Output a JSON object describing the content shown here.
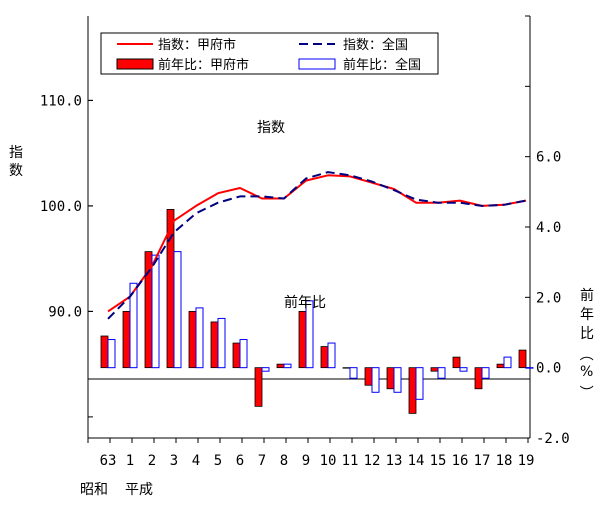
{
  "chart_data": {
    "type": "bar+line",
    "categories": [
      "63",
      "1",
      "2",
      "3",
      "4",
      "5",
      "6",
      "7",
      "8",
      "9",
      "10",
      "11",
      "12",
      "13",
      "14",
      "15",
      "16",
      "17",
      "18",
      "19"
    ],
    "era_labels": [
      "昭和",
      "平成"
    ],
    "left_axis": {
      "label": "指数",
      "ylim": [
        78.0,
        118.0
      ],
      "ticks": [
        "90.0",
        "100.0",
        "110.0"
      ],
      "tick_values": [
        90.0,
        100.0,
        110.0
      ]
    },
    "right_axis": {
      "label": "前年比（%）",
      "ylim": [
        -2.0,
        10.0
      ],
      "ticks": [
        "-2.0",
        "0.0",
        "2.0",
        "4.0",
        "6.0"
      ],
      "tick_values": [
        -2.0,
        0.0,
        2.0,
        4.0,
        6.0
      ]
    },
    "annotations": {
      "index": "指数",
      "yoy": "前年比"
    },
    "legend": [
      {
        "label": "指数：甲府市",
        "style": "line-solid",
        "color": "#ff0000"
      },
      {
        "label": "指数：全国",
        "style": "line-dashed",
        "color": "#000080"
      },
      {
        "label": "前年比：甲府市",
        "style": "bar-filled",
        "color": "#ff0000"
      },
      {
        "label": "前年比：全国",
        "style": "bar-hollow",
        "color": "#0000ff"
      }
    ],
    "series": [
      {
        "name": "指数：甲府市",
        "kind": "line",
        "axis": "left",
        "color": "#ff0000",
        "values": [
          90.0,
          91.4,
          94.3,
          98.6,
          100.0,
          101.2,
          101.7,
          100.7,
          100.7,
          102.4,
          102.9,
          102.8,
          102.2,
          101.6,
          100.3,
          100.3,
          100.5,
          100.0,
          100.1,
          100.5
        ]
      },
      {
        "name": "指数：全国",
        "kind": "line",
        "axis": "left",
        "color": "#000080",
        "values": [
          89.3,
          91.4,
          94.2,
          97.5,
          99.3,
          100.3,
          100.9,
          100.9,
          100.7,
          102.6,
          103.2,
          102.9,
          102.3,
          101.5,
          100.6,
          100.3,
          100.3,
          100.0,
          100.1,
          100.5
        ]
      },
      {
        "name": "前年比：甲府市",
        "kind": "bar",
        "axis": "right",
        "color": "#ff0000",
        "values": [
          0.9,
          1.6,
          3.3,
          4.5,
          1.6,
          1.3,
          0.7,
          -1.1,
          0.1,
          1.6,
          0.6,
          0.0,
          -0.5,
          -0.6,
          -1.3,
          -0.1,
          0.3,
          -0.6,
          0.1,
          0.5
        ]
      },
      {
        "name": "前年比：全国",
        "kind": "bar",
        "axis": "right",
        "color": "#0000ff",
        "values": [
          0.8,
          2.4,
          3.2,
          3.3,
          1.7,
          1.4,
          0.8,
          -0.1,
          0.1,
          1.9,
          0.7,
          -0.3,
          -0.7,
          -0.7,
          -0.9,
          -0.3,
          -0.1,
          -0.3,
          0.3,
          0.0
        ]
      }
    ]
  }
}
